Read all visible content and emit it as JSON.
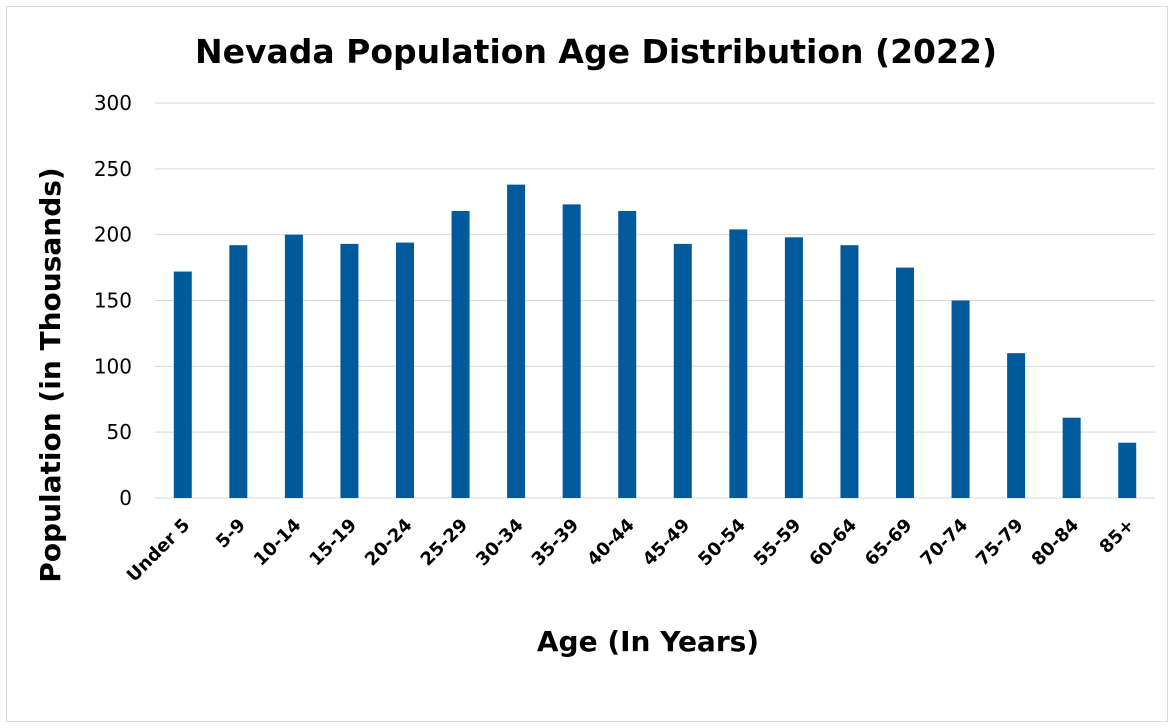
{
  "chart_data": {
    "type": "bar",
    "title": "Nevada Population Age Distribution (2022)",
    "xlabel": "Age (In Years)",
    "ylabel": "Population (in Thousands)",
    "ylim": [
      0,
      300
    ],
    "yticks": [
      "0",
      "50",
      "100",
      "150",
      "200",
      "250",
      "300"
    ],
    "categories": [
      "Under 5",
      "5-9",
      "10-14",
      "15-19",
      "20-24",
      "25-29",
      "30-34",
      "35-39",
      "40-44",
      "45-49",
      "50-54",
      "55-59",
      "60-64",
      "65-69",
      "70-74",
      "75-79",
      "80-84",
      "85+"
    ],
    "values": [
      172,
      192,
      200,
      193,
      194,
      218,
      238,
      223,
      218,
      193,
      204,
      198,
      192,
      175,
      150,
      110,
      61,
      42
    ],
    "bar_color": "#005a9c",
    "grid": true,
    "legend": "none"
  }
}
